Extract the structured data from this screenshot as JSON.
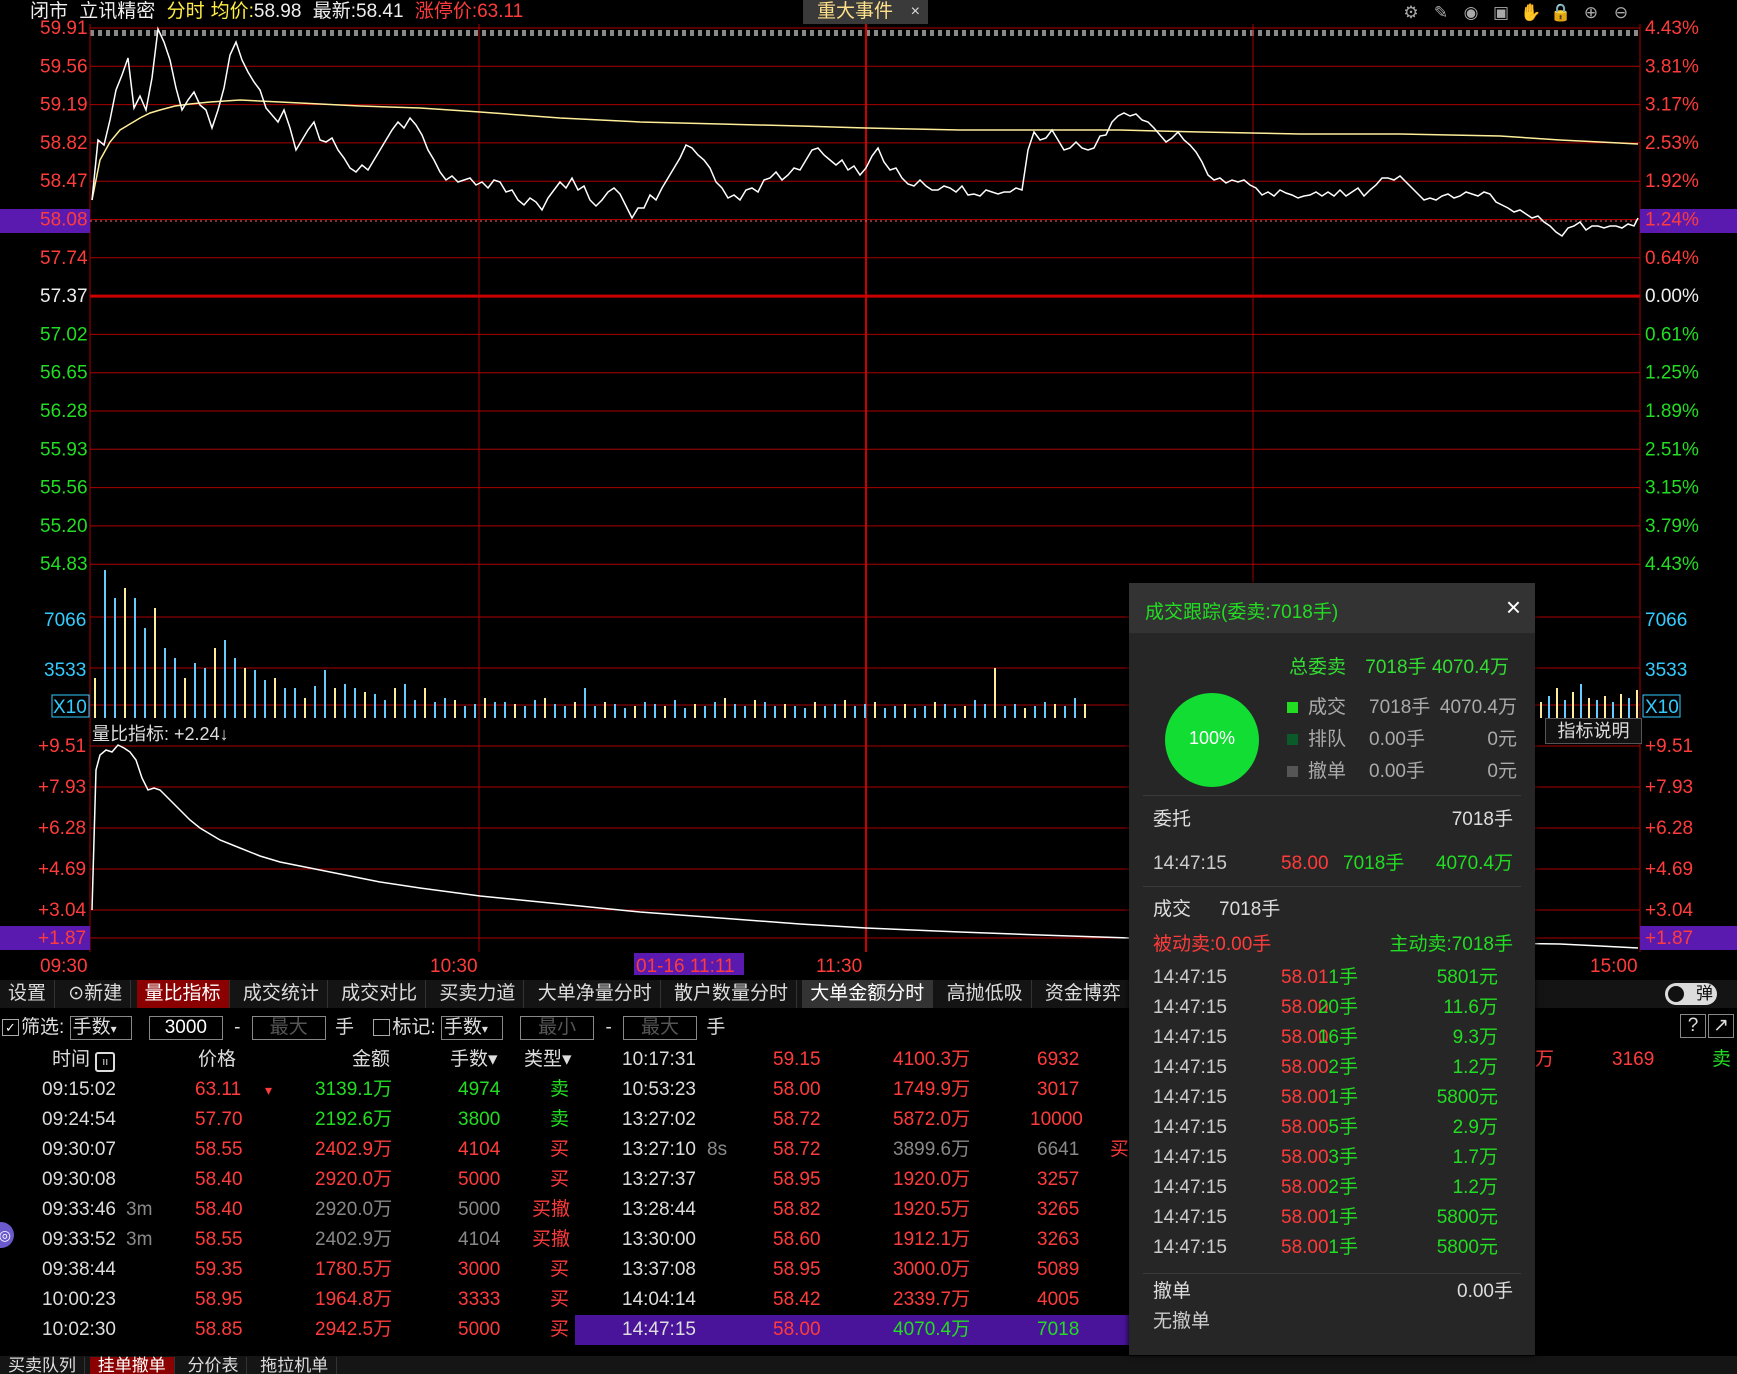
{
  "header": {
    "status": "闭市",
    "stock_name": "立讯精密",
    "mode": "分时",
    "avg_label": "均价:",
    "avg_value": "58.98",
    "latest_label": "最新:",
    "latest_value": "58.41",
    "limit_label": "涨停价:",
    "limit_value": "63.11",
    "event_button": "重大事件",
    "event_close": "×"
  },
  "colors": {
    "up": "#ff3b3b",
    "down": "#22dd22",
    "grid": "#aa0000",
    "price_line": "#ffffff",
    "avg_line": "#ffee99",
    "highlight": "#4a149a"
  },
  "left_axis": {
    "price_ticks": [
      "59.91",
      "59.56",
      "59.19",
      "58.82",
      "58.47",
      "58.08",
      "57.74",
      "57.37",
      "57.02",
      "56.65",
      "56.28",
      "55.93",
      "55.56",
      "55.20",
      "54.83"
    ],
    "volume_ticks": [
      "7066",
      "3533",
      "X10"
    ],
    "ratio_ticks": [
      "+9.51",
      "+7.93",
      "+6.28",
      "+4.69",
      "+3.04",
      "+1.87"
    ]
  },
  "right_axis": {
    "pct_ticks": [
      "4.43%",
      "3.81%",
      "3.17%",
      "2.53%",
      "1.92%",
      "1.24%",
      "0.64%",
      "0.00%",
      "0.61%",
      "1.25%",
      "1.89%",
      "2.51%",
      "3.15%",
      "3.79%",
      "4.43%"
    ],
    "volume_ticks": [
      "7066",
      "3533",
      "X10"
    ],
    "ratio_ticks": [
      "+9.51",
      "+7.93",
      "+6.28",
      "+4.69",
      "+3.04",
      "+1.87"
    ]
  },
  "time_axis": [
    "09:30",
    "10:30",
    "01-16 11:11",
    "11:30",
    "15:00"
  ],
  "ratio_panel": {
    "label": "量比指标:",
    "value": "+2.24↓",
    "explain": "指标说明"
  },
  "tabs": [
    "设置",
    "新建",
    "量比指标",
    "成交统计",
    "成交对比",
    "买卖力道",
    "大单净量分时",
    "散户数量分时",
    "大单金额分时",
    "高抛低吸",
    "资金博弈"
  ],
  "toggle_label": "弹",
  "filter": {
    "filter_label": "筛选:",
    "unit_select": "手数",
    "min_value": "3000",
    "dash": "-",
    "max_placeholder": "最大",
    "unit": "手",
    "mark_label": "标记:",
    "mark_select": "手数",
    "mark_min_placeholder": "最小",
    "mark_max_placeholder": "最大",
    "mark_unit": "手",
    "help": "?",
    "expand": "↗"
  },
  "left_table": {
    "headers": [
      "时间",
      "价格",
      "金额",
      "手数▾",
      "类型▾"
    ],
    "rows": [
      {
        "time": "09:15:02",
        "tag": "",
        "price": "63.11",
        "flag": "▾",
        "amount": "3139.1万",
        "lots": "4974",
        "type": "卖"
      },
      {
        "time": "09:24:54",
        "tag": "",
        "price": "57.70",
        "flag": "",
        "amount": "2192.6万",
        "lots": "3800",
        "type": "卖"
      },
      {
        "time": "09:30:07",
        "tag": "",
        "price": "58.55",
        "flag": "",
        "amount": "2402.9万",
        "lots": "4104",
        "type": "买"
      },
      {
        "time": "09:30:08",
        "tag": "",
        "price": "58.40",
        "flag": "",
        "amount": "2920.0万",
        "lots": "5000",
        "type": "买"
      },
      {
        "time": "09:33:46",
        "tag": "3m",
        "price": "58.40",
        "flag": "",
        "amount": "2920.0万",
        "lots": "5000",
        "type": "买撤"
      },
      {
        "time": "09:33:52",
        "tag": "3m",
        "price": "58.55",
        "flag": "",
        "amount": "2402.9万",
        "lots": "4104",
        "type": "买撤"
      },
      {
        "time": "09:38:44",
        "tag": "",
        "price": "59.35",
        "flag": "",
        "amount": "1780.5万",
        "lots": "3000",
        "type": "买"
      },
      {
        "time": "10:00:23",
        "tag": "",
        "price": "58.95",
        "flag": "",
        "amount": "1964.8万",
        "lots": "3333",
        "type": "买"
      },
      {
        "time": "10:02:30",
        "tag": "",
        "price": "58.85",
        "flag": "",
        "amount": "2942.5万",
        "lots": "5000",
        "type": "买"
      }
    ]
  },
  "mid_table": {
    "rows": [
      {
        "time": "10:17:31",
        "tag": "",
        "price": "59.15",
        "amount": "4100.3万",
        "lots": "6932",
        "type": ""
      },
      {
        "time": "10:53:23",
        "tag": "",
        "price": "58.00",
        "amount": "1749.9万",
        "lots": "3017",
        "type": ""
      },
      {
        "time": "13:27:02",
        "tag": "",
        "price": "58.72",
        "amount": "5872.0万",
        "lots": "10000",
        "type": ""
      },
      {
        "time": "13:27:10",
        "tag": "8s",
        "price": "58.72",
        "amount": "3899.6万",
        "lots": "6641",
        "type": "买"
      },
      {
        "time": "13:27:37",
        "tag": "",
        "price": "58.95",
        "amount": "1920.0万",
        "lots": "3257",
        "type": ""
      },
      {
        "time": "13:28:44",
        "tag": "",
        "price": "58.82",
        "amount": "1920.5万",
        "lots": "3265",
        "type": ""
      },
      {
        "time": "13:30:00",
        "tag": "",
        "price": "58.60",
        "amount": "1912.1万",
        "lots": "3263",
        "type": ""
      },
      {
        "time": "13:37:08",
        "tag": "",
        "price": "58.95",
        "amount": "3000.0万",
        "lots": "5089",
        "type": ""
      },
      {
        "time": "14:04:14",
        "tag": "",
        "price": "58.42",
        "amount": "2339.7万",
        "lots": "4005",
        "type": ""
      },
      {
        "time": "14:47:15",
        "tag": "",
        "price": "58.00",
        "amount": "4070.4万",
        "lots": "7018",
        "type": ""
      }
    ]
  },
  "right_fragment": {
    "amount": "万",
    "lots": "3169",
    "type": "卖"
  },
  "bottom_tabs": [
    "买卖队列",
    "挂单撤单",
    "分价表",
    "拖拉机单"
  ],
  "popup": {
    "title": "成交跟踪(委卖:7018手)",
    "close": "×",
    "total_label": "总委卖",
    "total_value": "7018手 4070.4万",
    "pie_label": "100%",
    "legend": [
      {
        "name": "成交",
        "lots": "7018手",
        "amount": "4070.4万",
        "color": "#22dd22"
      },
      {
        "name": "排队",
        "lots": "0.00手",
        "amount": "0元",
        "color": "#0a5a2a"
      },
      {
        "name": "撤单",
        "lots": "0.00手",
        "amount": "0元",
        "color": "#555555"
      }
    ],
    "order_label": "委托",
    "order_total": "7018手",
    "order_row": {
      "time": "14:47:15",
      "price": "58.00",
      "lots": "7018手",
      "amount": "4070.4万"
    },
    "deal_label": "成交",
    "deal_total": "7018手",
    "passive": "被动卖:0.00手",
    "active": "主动卖:7018手",
    "deals": [
      {
        "time": "14:47:15",
        "price": "58.01",
        "lots": "1手",
        "amount": "5801元"
      },
      {
        "time": "14:47:15",
        "price": "58.00",
        "lots": "20手",
        "amount": "11.6万"
      },
      {
        "time": "14:47:15",
        "price": "58.00",
        "lots": "16手",
        "amount": "9.3万"
      },
      {
        "time": "14:47:15",
        "price": "58.00",
        "lots": "2手",
        "amount": "1.2万"
      },
      {
        "time": "14:47:15",
        "price": "58.00",
        "lots": "1手",
        "amount": "5800元"
      },
      {
        "time": "14:47:15",
        "price": "58.00",
        "lots": "5手",
        "amount": "2.9万"
      },
      {
        "time": "14:47:15",
        "price": "58.00",
        "lots": "3手",
        "amount": "1.7万"
      },
      {
        "time": "14:47:15",
        "price": "58.00",
        "lots": "2手",
        "amount": "1.2万"
      },
      {
        "time": "14:47:15",
        "price": "58.00",
        "lots": "1手",
        "amount": "5800元"
      },
      {
        "time": "14:47:15",
        "price": "58.00",
        "lots": "1手",
        "amount": "5800元"
      }
    ],
    "cancel_label": "撤单",
    "cancel_value": "0.00手",
    "no_cancel": "无撤单"
  }
}
